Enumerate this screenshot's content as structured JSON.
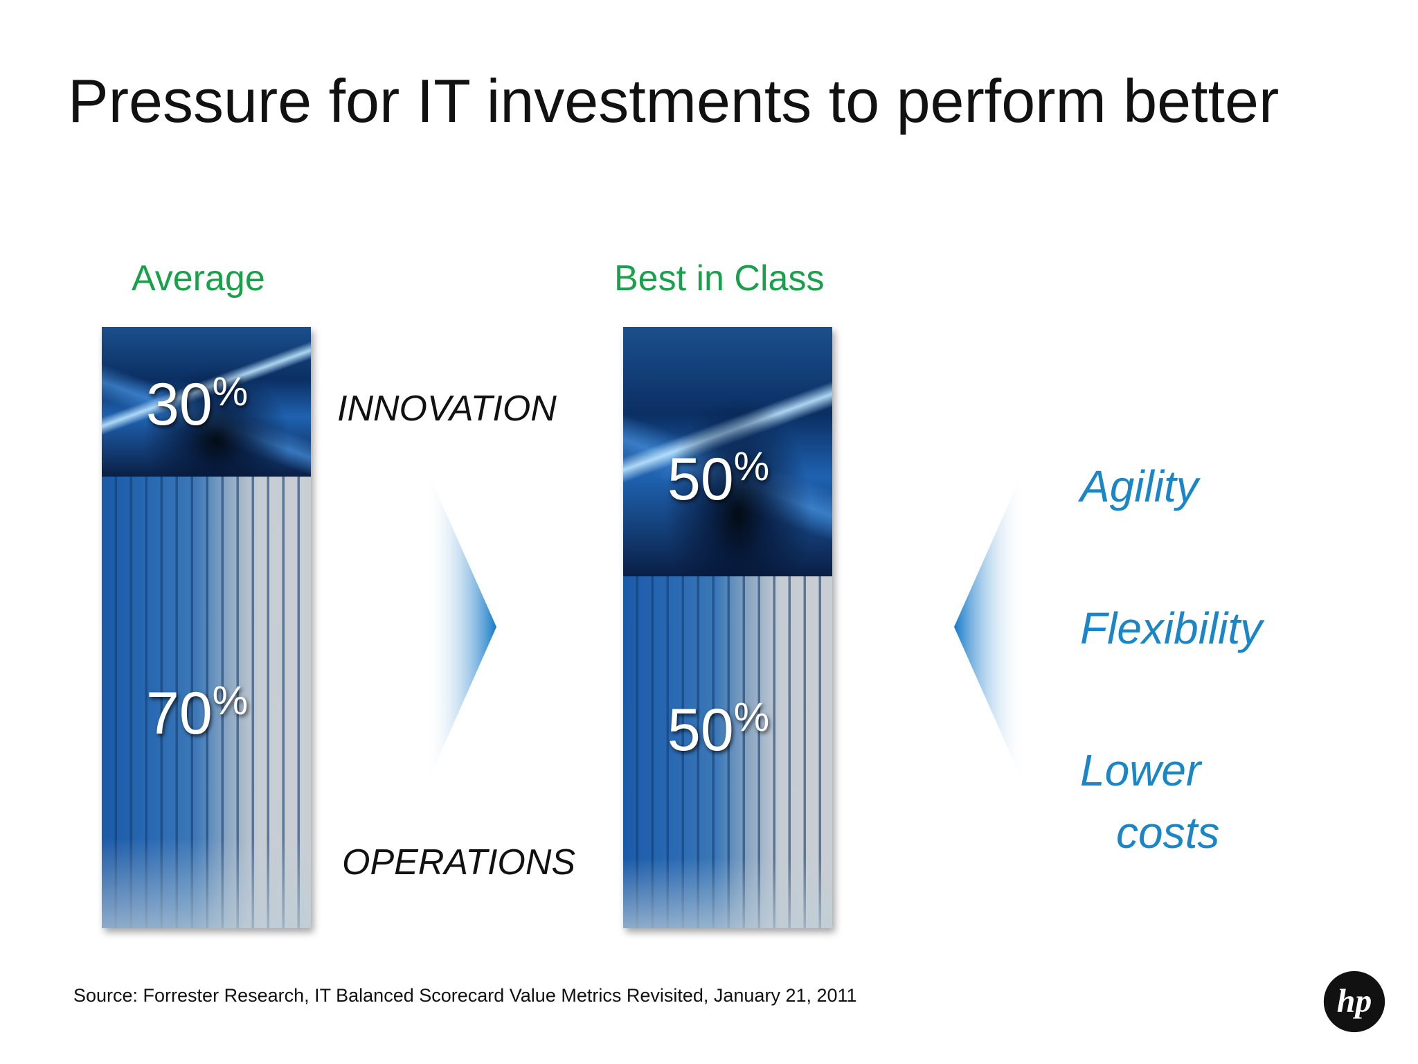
{
  "slide": {
    "title": "Pressure for IT investments to perform better",
    "columns": {
      "average": {
        "label": "Average",
        "innovation_pct": "30",
        "operations_pct": "70",
        "innovation_share": 0.3
      },
      "best_in_class": {
        "label": "Best in Class",
        "innovation_pct": "50",
        "operations_pct": "50",
        "innovation_share": 0.5
      }
    },
    "percent_symbol": "%",
    "category_labels": {
      "innovation": "INNOVATION",
      "operations": "OPERATIONS"
    },
    "benefits": {
      "agility": "Agility",
      "flexibility": "Flexibility",
      "lower": "Lower",
      "costs": "costs"
    },
    "source": "Source: Forrester Research, IT Balanced Scorecard Value Metrics Revisited, January 21, 2011",
    "logo_icon": "hp-logo",
    "colors": {
      "column_label": "#18a04a",
      "benefit_text": "#1a86c8",
      "arrow_blue": "#1479c8"
    }
  }
}
